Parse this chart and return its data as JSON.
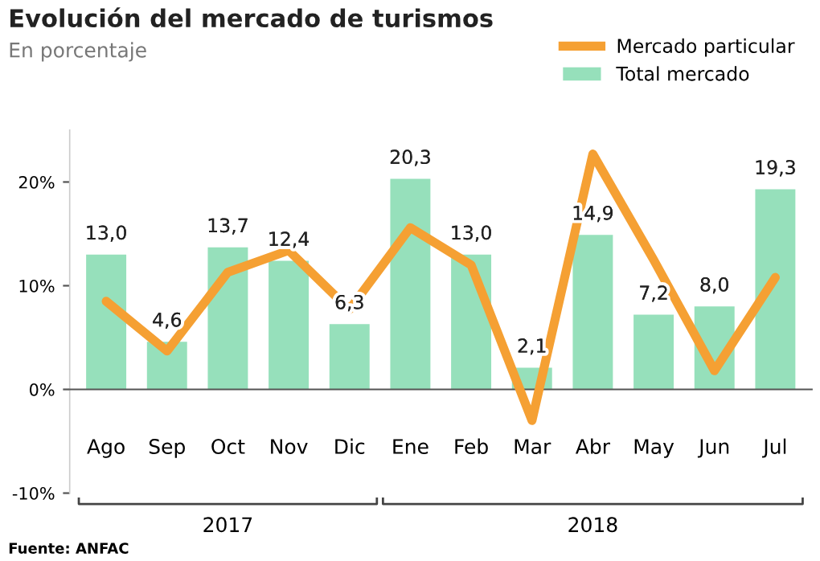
{
  "chart_data": {
    "type": "bar",
    "title": "Evolución del mercado de turismos",
    "subtitle": "En porcentaje",
    "categories": [
      "Ago",
      "Sep",
      "Oct",
      "Nov",
      "Dic",
      "Ene",
      "Feb",
      "Mar",
      "Abr",
      "May",
      "Jun",
      "Jul"
    ],
    "series": [
      {
        "name": "Mercado particular",
        "type": "line",
        "color": "#f5a033",
        "values": [
          8.5,
          3.7,
          11.3,
          13.4,
          7.7,
          15.6,
          12.0,
          -3.0,
          22.7,
          12.5,
          1.8,
          10.8
        ]
      },
      {
        "name": "Total mercado",
        "color": "#96e0bb",
        "values": [
          13.0,
          4.6,
          13.7,
          12.4,
          6.3,
          20.3,
          13.0,
          2.1,
          14.9,
          7.2,
          8.0,
          19.3
        ],
        "value_labels": [
          "13,0",
          "4,6",
          "13,7",
          "12,4",
          "6,3",
          "20,3",
          "13,0",
          "2,1",
          "14,9",
          "7,2",
          "8,0",
          "19,3"
        ]
      }
    ],
    "ylim": [
      -10,
      25
    ],
    "yticks": [
      {
        "value": -10,
        "label": "-10%"
      },
      {
        "value": 0,
        "label": "0%"
      },
      {
        "value": 10,
        "label": "10%"
      },
      {
        "value": 20,
        "label": "20%"
      }
    ],
    "annotations": [
      "2017",
      "2018",
      "Fuente: ANFAC"
    ],
    "legend": "top right",
    "marker": "none",
    "line_style": "solid"
  }
}
